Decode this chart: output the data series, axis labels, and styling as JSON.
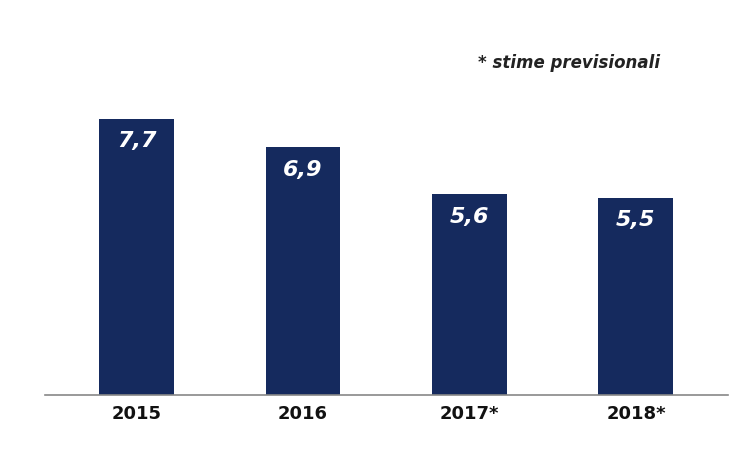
{
  "categories": [
    "2015",
    "2016",
    "2017*",
    "2018*"
  ],
  "values": [
    7.7,
    6.9,
    5.6,
    5.5
  ],
  "bar_color": "#152a5e",
  "label_color": "#ffffff",
  "label_fontsize": 16,
  "label_fontweight": "bold",
  "annotation": "* stime previsionali",
  "annotation_style": "italic",
  "annotation_fontsize": 12,
  "annotation_color": "#222222",
  "tick_fontsize": 13,
  "tick_fontweight": "bold",
  "tick_color": "#111111",
  "ylim": [
    0,
    10.0
  ],
  "background_color": "#ffffff",
  "bar_width": 0.45,
  "xlabel": "",
  "ylabel": "",
  "figsize": [
    7.5,
    4.49
  ],
  "dpi": 100
}
